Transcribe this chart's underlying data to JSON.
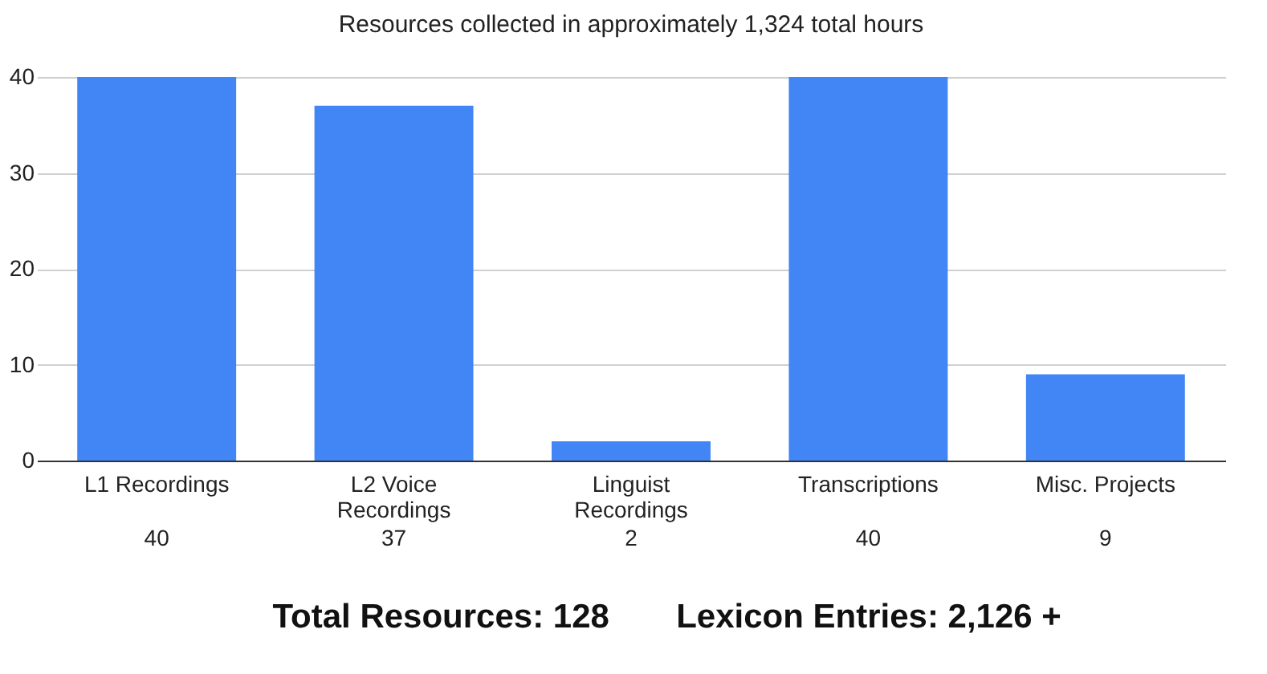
{
  "chart_data": {
    "type": "bar",
    "title": "Resources collected in approximately 1,324 total hours",
    "categories": [
      "L1 Recordings",
      "L2 Voice Recordings",
      "Linguist Recordings",
      "Transcriptions",
      "Misc. Projects"
    ],
    "values": [
      40,
      37,
      2,
      40,
      9
    ],
    "color": "#4285f4",
    "ylim": [
      0,
      40
    ],
    "yticks": [
      0,
      10,
      20,
      30,
      40
    ],
    "grid": "y",
    "data_labels": true,
    "annotations": [
      "Total Resources: 128",
      "Lexicon Entries: 2,126 +"
    ]
  }
}
